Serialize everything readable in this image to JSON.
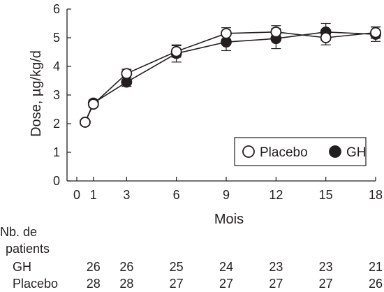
{
  "chart_data": {
    "type": "line",
    "xlabel": "Mois",
    "ylabel": "Dose, µg/kg/d",
    "xlim": [
      0,
      18
    ],
    "ylim": [
      0,
      6
    ],
    "x_ticks": [
      0,
      1,
      3,
      6,
      9,
      12,
      15,
      18
    ],
    "y_ticks": [
      0,
      1,
      2,
      3,
      4,
      5,
      6
    ],
    "grid": false,
    "legend_position": "lower-right",
    "series": [
      {
        "name": "Placebo",
        "marker": "open-circle",
        "x": [
          0.5,
          1,
          3,
          6,
          9,
          12,
          15,
          18
        ],
        "y": [
          2.05,
          2.68,
          3.75,
          4.52,
          5.15,
          5.2,
          5.0,
          5.18
        ],
        "err": [
          0,
          0.1,
          0.15,
          0.2,
          0.2,
          0.22,
          0.25,
          0.2
        ]
      },
      {
        "name": "GH",
        "marker": "filled-circle",
        "x": [
          0.5,
          1,
          3,
          6,
          9,
          12,
          15,
          18
        ],
        "y": [
          2.05,
          2.72,
          3.45,
          4.45,
          4.85,
          4.97,
          5.2,
          5.12
        ],
        "err": [
          0,
          0.1,
          0.15,
          0.3,
          0.3,
          0.35,
          0.3,
          0.25
        ]
      }
    ],
    "patients_table": {
      "title_line1": "Nb. de",
      "title_line2": "patients",
      "x": [
        0.5,
        1,
        3,
        6,
        9,
        12,
        15,
        18
      ],
      "rows": [
        {
          "label": "GH",
          "values": [
            "26",
            "26",
            "25",
            "24",
            "23",
            "23",
            "21"
          ],
          "x": [
            1,
            3,
            6,
            9,
            12,
            15,
            18
          ]
        },
        {
          "label": "Placebo",
          "values": [
            "28",
            "28",
            "27",
            "27",
            "27",
            "27",
            "26"
          ],
          "x": [
            1,
            3,
            6,
            9,
            12,
            15,
            18
          ]
        }
      ]
    }
  }
}
